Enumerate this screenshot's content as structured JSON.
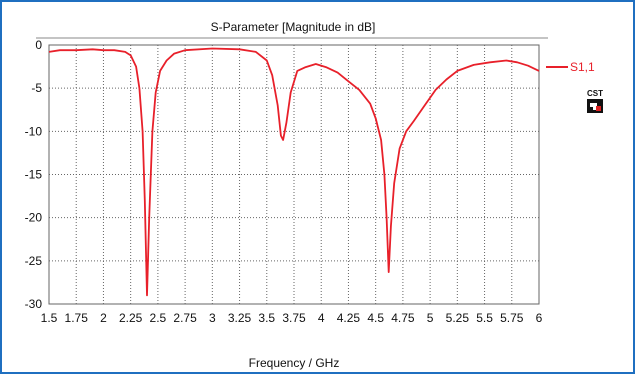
{
  "chart_data": {
    "type": "line",
    "title": "S-Parameter [Magnitude in dB]",
    "xlabel": "Frequency / GHz",
    "ylabel": "",
    "xlim": [
      1.5,
      6
    ],
    "ylim": [
      -30,
      0
    ],
    "xticks": [
      "1.5",
      "1.75",
      "2",
      "2.25",
      "2.5",
      "2.75",
      "3",
      "3.25",
      "3.5",
      "3.75",
      "4",
      "4.25",
      "4.5",
      "4.75",
      "5",
      "5.25",
      "5.5",
      "5.75",
      "6"
    ],
    "yticks": [
      "0",
      "-5",
      "-10",
      "-15",
      "-20",
      "-25",
      "-30"
    ],
    "grid": true,
    "legend_position": "right",
    "logo_text": "CST",
    "series": [
      {
        "name": "S1,1",
        "color": "#e8202a",
        "points": [
          [
            1.5,
            -0.8
          ],
          [
            1.6,
            -0.6
          ],
          [
            1.75,
            -0.6
          ],
          [
            1.9,
            -0.5
          ],
          [
            2.0,
            -0.6
          ],
          [
            2.1,
            -0.6
          ],
          [
            2.2,
            -0.8
          ],
          [
            2.25,
            -1.2
          ],
          [
            2.3,
            -2.5
          ],
          [
            2.33,
            -5.0
          ],
          [
            2.36,
            -10.0
          ],
          [
            2.38,
            -18.0
          ],
          [
            2.4,
            -29.0
          ],
          [
            2.42,
            -20.0
          ],
          [
            2.45,
            -10.0
          ],
          [
            2.48,
            -5.5
          ],
          [
            2.52,
            -3.0
          ],
          [
            2.58,
            -1.8
          ],
          [
            2.65,
            -1.0
          ],
          [
            2.75,
            -0.6
          ],
          [
            3.0,
            -0.4
          ],
          [
            3.25,
            -0.5
          ],
          [
            3.4,
            -0.8
          ],
          [
            3.5,
            -1.8
          ],
          [
            3.55,
            -3.5
          ],
          [
            3.6,
            -7.0
          ],
          [
            3.63,
            -10.5
          ],
          [
            3.65,
            -11.0
          ],
          [
            3.68,
            -9.0
          ],
          [
            3.72,
            -5.5
          ],
          [
            3.78,
            -3.0
          ],
          [
            3.85,
            -2.6
          ],
          [
            3.95,
            -2.2
          ],
          [
            4.05,
            -2.6
          ],
          [
            4.15,
            -3.2
          ],
          [
            4.25,
            -4.2
          ],
          [
            4.35,
            -5.2
          ],
          [
            4.45,
            -6.8
          ],
          [
            4.5,
            -8.5
          ],
          [
            4.55,
            -11.0
          ],
          [
            4.58,
            -15.0
          ],
          [
            4.6,
            -20.0
          ],
          [
            4.62,
            -26.3
          ],
          [
            4.64,
            -21.0
          ],
          [
            4.67,
            -16.0
          ],
          [
            4.72,
            -12.0
          ],
          [
            4.78,
            -10.0
          ],
          [
            4.85,
            -8.8
          ],
          [
            4.95,
            -7.0
          ],
          [
            5.05,
            -5.2
          ],
          [
            5.15,
            -4.0
          ],
          [
            5.25,
            -3.0
          ],
          [
            5.4,
            -2.3
          ],
          [
            5.55,
            -2.0
          ],
          [
            5.7,
            -1.8
          ],
          [
            5.8,
            -2.0
          ],
          [
            5.9,
            -2.4
          ],
          [
            6.0,
            -3.0
          ]
        ]
      }
    ]
  }
}
